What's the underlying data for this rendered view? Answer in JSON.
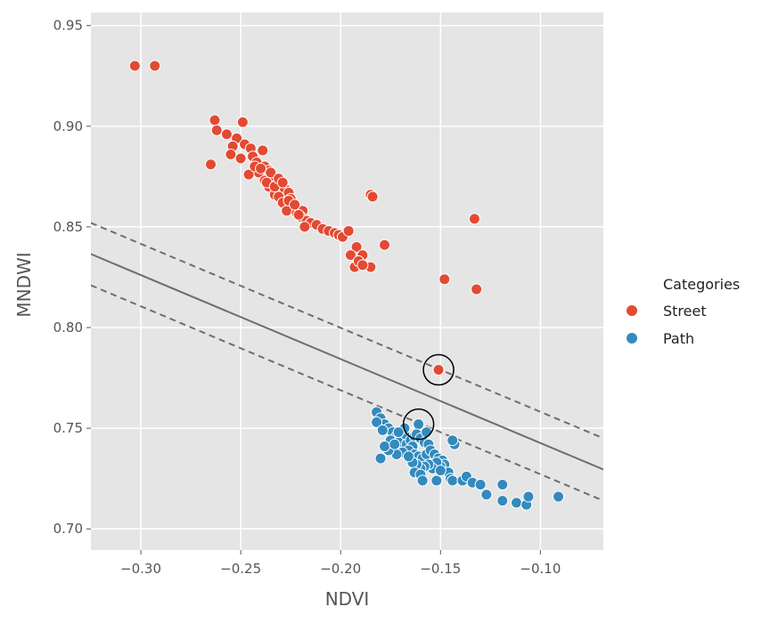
{
  "chart_data": {
    "type": "scatter",
    "title": "",
    "xlabel": "NDVI",
    "ylabel": "MNDWI",
    "xlim": [
      -0.325,
      -0.0685
    ],
    "ylim": [
      0.6895,
      0.9565
    ],
    "x_ticks": [
      -0.3,
      -0.25,
      -0.2,
      -0.15,
      -0.1
    ],
    "x_tick_labels": [
      "−0.30",
      "−0.25",
      "−0.20",
      "−0.15",
      "−0.10"
    ],
    "y_ticks": [
      0.7,
      0.75,
      0.8,
      0.85,
      0.9,
      0.95
    ],
    "y_tick_labels": [
      "0.70",
      "0.75",
      "0.80",
      "0.85",
      "0.90",
      "0.95"
    ],
    "grid": true,
    "background": "#e5e5e5",
    "legend": {
      "title": "Categories",
      "placement": "right",
      "entries": [
        "Street",
        "Path"
      ]
    },
    "series": [
      {
        "name": "Street",
        "color": "#e24a33",
        "points": [
          [
            -0.303,
            0.93
          ],
          [
            -0.293,
            0.93
          ],
          [
            -0.263,
            0.903
          ],
          [
            -0.249,
            0.902
          ],
          [
            -0.262,
            0.898
          ],
          [
            -0.257,
            0.896
          ],
          [
            -0.252,
            0.894
          ],
          [
            -0.248,
            0.891
          ],
          [
            -0.254,
            0.89
          ],
          [
            -0.245,
            0.889
          ],
          [
            -0.239,
            0.888
          ],
          [
            -0.244,
            0.885
          ],
          [
            -0.25,
            0.884
          ],
          [
            -0.255,
            0.886
          ],
          [
            -0.242,
            0.882
          ],
          [
            -0.238,
            0.88
          ],
          [
            -0.236,
            0.878
          ],
          [
            -0.241,
            0.877
          ],
          [
            -0.246,
            0.876
          ],
          [
            -0.234,
            0.875
          ],
          [
            -0.238,
            0.873
          ],
          [
            -0.232,
            0.871
          ],
          [
            -0.236,
            0.87
          ],
          [
            -0.23,
            0.868
          ],
          [
            -0.233,
            0.866
          ],
          [
            -0.228,
            0.869
          ],
          [
            -0.226,
            0.867
          ],
          [
            -0.231,
            0.865
          ],
          [
            -0.225,
            0.864
          ],
          [
            -0.229,
            0.862
          ],
          [
            -0.224,
            0.86
          ],
          [
            -0.227,
            0.858
          ],
          [
            -0.222,
            0.857
          ],
          [
            -0.219,
            0.858
          ],
          [
            -0.22,
            0.855
          ],
          [
            -0.217,
            0.853
          ],
          [
            -0.215,
            0.852
          ],
          [
            -0.218,
            0.85
          ],
          [
            -0.212,
            0.851
          ],
          [
            -0.209,
            0.849
          ],
          [
            -0.206,
            0.848
          ],
          [
            -0.203,
            0.847
          ],
          [
            -0.201,
            0.846
          ],
          [
            -0.199,
            0.845
          ],
          [
            -0.265,
            0.881
          ],
          [
            -0.243,
            0.88
          ],
          [
            -0.24,
            0.879
          ],
          [
            -0.235,
            0.877
          ],
          [
            -0.237,
            0.872
          ],
          [
            -0.233,
            0.87
          ],
          [
            -0.231,
            0.874
          ],
          [
            -0.229,
            0.872
          ],
          [
            -0.226,
            0.863
          ],
          [
            -0.223,
            0.861
          ],
          [
            -0.221,
            0.856
          ],
          [
            -0.196,
            0.848
          ],
          [
            -0.192,
            0.84
          ],
          [
            -0.189,
            0.836
          ],
          [
            -0.185,
            0.83
          ],
          [
            -0.195,
            0.836
          ],
          [
            -0.193,
            0.83
          ],
          [
            -0.191,
            0.833
          ],
          [
            -0.189,
            0.831
          ],
          [
            -0.185,
            0.866
          ],
          [
            -0.184,
            0.865
          ],
          [
            -0.178,
            0.841
          ],
          [
            -0.133,
            0.854
          ],
          [
            -0.148,
            0.824
          ],
          [
            -0.132,
            0.819
          ],
          [
            -0.151,
            0.779
          ]
        ]
      },
      {
        "name": "Path",
        "color": "#348abd",
        "points": [
          [
            -0.182,
            0.758
          ],
          [
            -0.18,
            0.755
          ],
          [
            -0.178,
            0.752
          ],
          [
            -0.182,
            0.753
          ],
          [
            -0.176,
            0.75
          ],
          [
            -0.174,
            0.748
          ],
          [
            -0.179,
            0.749
          ],
          [
            -0.172,
            0.746
          ],
          [
            -0.17,
            0.745
          ],
          [
            -0.168,
            0.747
          ],
          [
            -0.175,
            0.744
          ],
          [
            -0.171,
            0.743
          ],
          [
            -0.167,
            0.742
          ],
          [
            -0.165,
            0.744
          ],
          [
            -0.163,
            0.746
          ],
          [
            -0.161,
            0.752
          ],
          [
            -0.162,
            0.747
          ],
          [
            -0.16,
            0.745
          ],
          [
            -0.158,
            0.743
          ],
          [
            -0.156,
            0.742
          ],
          [
            -0.164,
            0.741
          ],
          [
            -0.166,
            0.739
          ],
          [
            -0.169,
            0.738
          ],
          [
            -0.172,
            0.737
          ],
          [
            -0.176,
            0.739
          ],
          [
            -0.178,
            0.741
          ],
          [
            -0.18,
            0.735
          ],
          [
            -0.163,
            0.737
          ],
          [
            -0.161,
            0.736
          ],
          [
            -0.159,
            0.735
          ],
          [
            -0.157,
            0.737
          ],
          [
            -0.155,
            0.739
          ],
          [
            -0.153,
            0.737
          ],
          [
            -0.151,
            0.735
          ],
          [
            -0.149,
            0.734
          ],
          [
            -0.148,
            0.732
          ],
          [
            -0.15,
            0.731
          ],
          [
            -0.152,
            0.733
          ],
          [
            -0.154,
            0.73
          ],
          [
            -0.156,
            0.732
          ],
          [
            -0.158,
            0.731
          ],
          [
            -0.16,
            0.73
          ],
          [
            -0.162,
            0.732
          ],
          [
            -0.164,
            0.733
          ],
          [
            -0.166,
            0.736
          ],
          [
            -0.163,
            0.728
          ],
          [
            -0.16,
            0.727
          ],
          [
            -0.159,
            0.724
          ],
          [
            -0.152,
            0.724
          ],
          [
            -0.146,
            0.728
          ],
          [
            -0.145,
            0.725
          ],
          [
            -0.144,
            0.724
          ],
          [
            -0.143,
            0.742
          ],
          [
            -0.144,
            0.744
          ],
          [
            -0.15,
            0.729
          ],
          [
            -0.139,
            0.724
          ],
          [
            -0.137,
            0.726
          ],
          [
            -0.134,
            0.723
          ],
          [
            -0.13,
            0.722
          ],
          [
            -0.127,
            0.717
          ],
          [
            -0.119,
            0.722
          ],
          [
            -0.119,
            0.714
          ],
          [
            -0.112,
            0.713
          ],
          [
            -0.107,
            0.712
          ],
          [
            -0.106,
            0.716
          ],
          [
            -0.091,
            0.716
          ],
          [
            -0.157,
            0.748
          ],
          [
            -0.168,
            0.75
          ],
          [
            -0.171,
            0.748
          ],
          [
            -0.173,
            0.742
          ]
        ]
      }
    ],
    "lines": [
      {
        "style": "solid",
        "points": [
          [
            -0.325,
            0.8365
          ],
          [
            -0.0685,
            0.7295
          ]
        ]
      },
      {
        "style": "dashed",
        "points": [
          [
            -0.325,
            0.852
          ],
          [
            -0.0685,
            0.745
          ]
        ]
      },
      {
        "style": "dashed",
        "points": [
          [
            -0.325,
            0.821
          ],
          [
            -0.0685,
            0.714
          ]
        ]
      }
    ],
    "highlighted_points": [
      [
        -0.151,
        0.779
      ],
      [
        -0.161,
        0.752
      ]
    ],
    "line_color": "#6e6e6e"
  }
}
